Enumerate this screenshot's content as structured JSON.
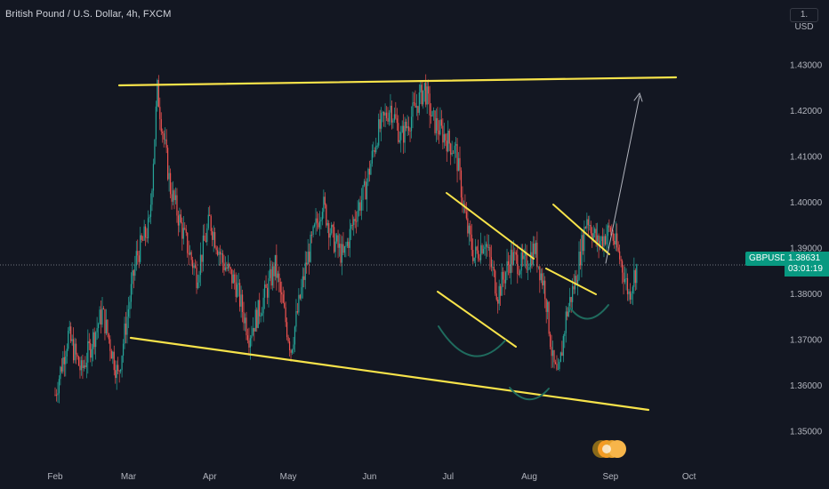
{
  "header": {
    "title": "British Pound / U.S. Dollar, 4h, FXCM"
  },
  "price_axis": {
    "currency": "1. USD",
    "symbol": "GBPUSD",
    "last_price": "1.38631",
    "countdown": "03:01:19"
  },
  "colors": {
    "background": "#131722",
    "up_candle": "#26a69a",
    "down_candle": "#ef5350",
    "trendline": "#f7e34a",
    "arc": "#1f6b5e",
    "projection": "#b2b5be",
    "badge": "#089981"
  },
  "chart_data": {
    "type": "candlestick",
    "title": "British Pound / U.S. Dollar, 4h, FXCM",
    "x_ticks": [
      "Feb",
      "Mar",
      "Apr",
      "May",
      "Jun",
      "Jul",
      "Aug",
      "Sep",
      "Oct"
    ],
    "y_ticks": [
      "1.35000",
      "1.36000",
      "1.37000",
      "1.38000",
      "1.39000",
      "1.40000",
      "1.41000",
      "1.42000",
      "1.43000"
    ],
    "ylim": [
      1.344,
      1.437
    ],
    "last_price": 1.38631,
    "path": [
      {
        "d": 0,
        "p": 1.358
      },
      {
        "d": 5,
        "p": 1.371
      },
      {
        "d": 10,
        "p": 1.363
      },
      {
        "d": 18,
        "p": 1.376
      },
      {
        "d": 24,
        "p": 1.362
      },
      {
        "d": 31,
        "p": 1.388
      },
      {
        "d": 36,
        "p": 1.395
      },
      {
        "d": 39,
        "p": 1.4245
      },
      {
        "d": 44,
        "p": 1.403
      },
      {
        "d": 49,
        "p": 1.393
      },
      {
        "d": 54,
        "p": 1.384
      },
      {
        "d": 59,
        "p": 1.396
      },
      {
        "d": 64,
        "p": 1.387
      },
      {
        "d": 69,
        "p": 1.382
      },
      {
        "d": 74,
        "p": 1.371
      },
      {
        "d": 79,
        "p": 1.378
      },
      {
        "d": 84,
        "p": 1.386
      },
      {
        "d": 90,
        "p": 1.368
      },
      {
        "d": 96,
        "p": 1.387
      },
      {
        "d": 102,
        "p": 1.4
      },
      {
        "d": 106,
        "p": 1.392
      },
      {
        "d": 110,
        "p": 1.388
      },
      {
        "d": 115,
        "p": 1.398
      },
      {
        "d": 118,
        "p": 1.402
      },
      {
        "d": 123,
        "p": 1.415
      },
      {
        "d": 128,
        "p": 1.421
      },
      {
        "d": 132,
        "p": 1.414
      },
      {
        "d": 137,
        "p": 1.42
      },
      {
        "d": 141,
        "p": 1.425
      },
      {
        "d": 144,
        "p": 1.418
      },
      {
        "d": 148,
        "p": 1.415
      },
      {
        "d": 153,
        "p": 1.411
      },
      {
        "d": 157,
        "p": 1.395
      },
      {
        "d": 160,
        "p": 1.388
      },
      {
        "d": 164,
        "p": 1.392
      },
      {
        "d": 169,
        "p": 1.38
      },
      {
        "d": 174,
        "p": 1.388
      },
      {
        "d": 179,
        "p": 1.386
      },
      {
        "d": 183,
        "p": 1.39
      },
      {
        "d": 187,
        "p": 1.381
      },
      {
        "d": 190,
        "p": 1.365
      },
      {
        "d": 192,
        "p": 1.361
      },
      {
        "d": 195,
        "p": 1.375
      },
      {
        "d": 199,
        "p": 1.384
      },
      {
        "d": 203,
        "p": 1.397
      },
      {
        "d": 207,
        "p": 1.391
      },
      {
        "d": 212,
        "p": 1.394
      },
      {
        "d": 216,
        "p": 1.387
      },
      {
        "d": 219,
        "p": 1.38
      },
      {
        "d": 222,
        "p": 1.386
      }
    ]
  }
}
